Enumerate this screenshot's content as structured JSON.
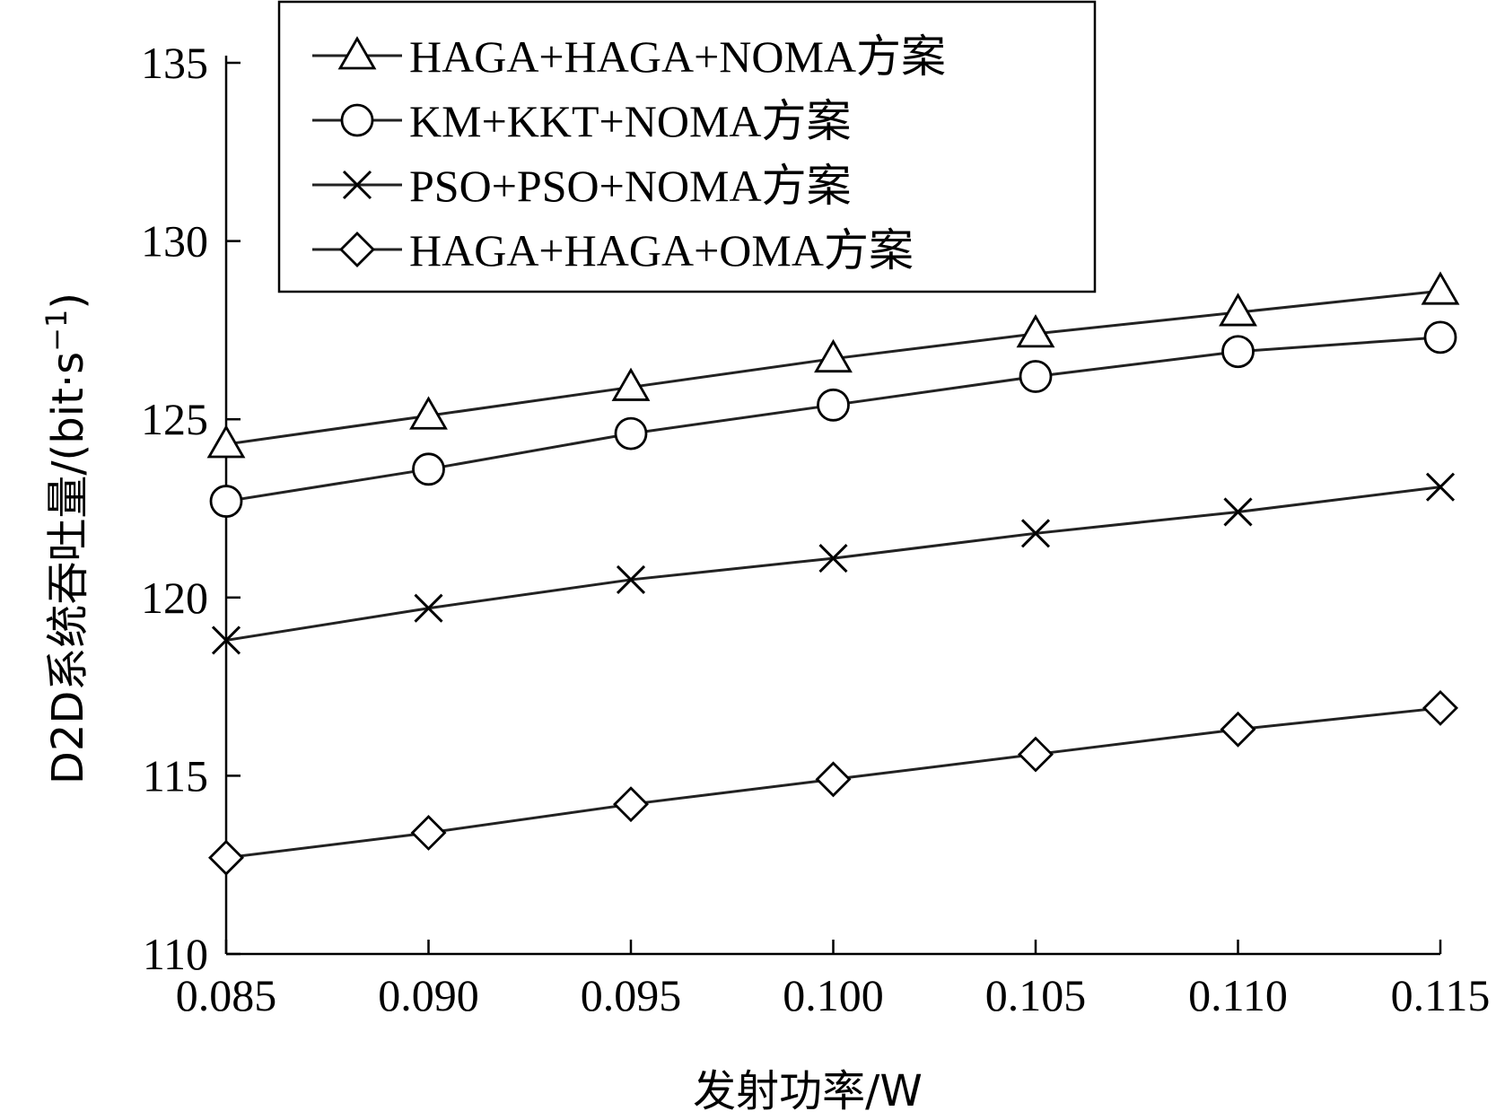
{
  "chart_data": {
    "type": "line",
    "x": [
      0.085,
      0.09,
      0.095,
      0.1,
      0.105,
      0.11,
      0.115
    ],
    "x_tick_labels": [
      "0.085",
      "0.090",
      "0.095",
      "0.100",
      "0.105",
      "0.110",
      "0.115"
    ],
    "y_ticks": [
      110,
      115,
      120,
      125,
      130,
      135
    ],
    "y_tick_labels": [
      "110",
      "115",
      "120",
      "125",
      "130",
      "135"
    ],
    "xlim": [
      0.085,
      0.115
    ],
    "ylim": [
      110,
      136.5
    ],
    "xlabel": "发射功率/W",
    "ylabel": "D2D系统吞吐量/(bit·s",
    "ylabel_sup": "−1",
    "ylabel_end": ")",
    "grid": false,
    "legend_position": "top-center",
    "series": [
      {
        "name": "HAGA+HAGA+NOMA方案",
        "marker": "triangle",
        "values": [
          124.3,
          125.1,
          125.9,
          126.7,
          127.4,
          128.0,
          128.6
        ]
      },
      {
        "name": "KM+KKT+NOMA方案",
        "marker": "circle",
        "values": [
          122.7,
          123.6,
          124.6,
          125.4,
          126.2,
          126.9,
          127.3
        ]
      },
      {
        "name": "PSO+PSO+NOMA方案",
        "marker": "x",
        "values": [
          118.8,
          119.7,
          120.5,
          121.1,
          121.8,
          122.4,
          123.1
        ]
      },
      {
        "name": "HAGA+HAGA+OMA方案",
        "marker": "diamond",
        "values": [
          112.7,
          113.4,
          114.2,
          114.9,
          115.6,
          116.3,
          116.9
        ]
      }
    ]
  }
}
